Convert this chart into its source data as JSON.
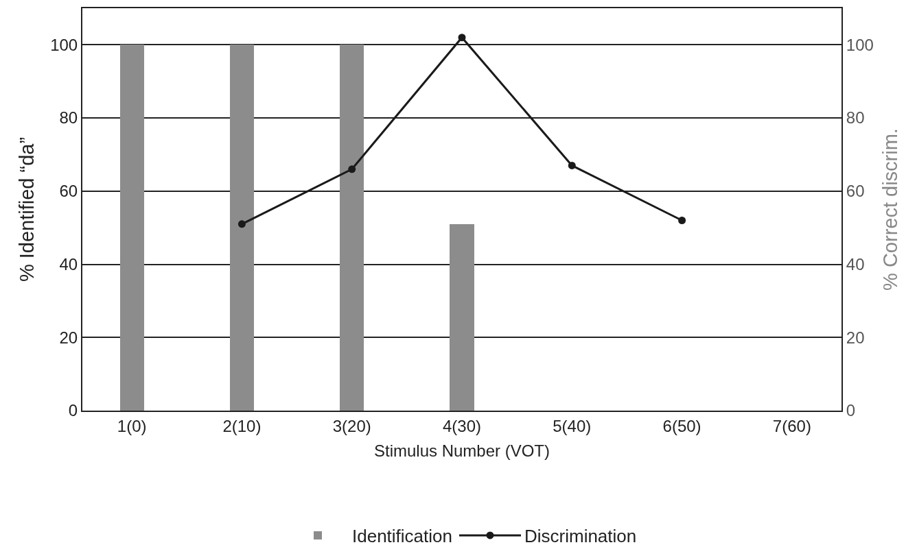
{
  "chart_data": {
    "type": "bar",
    "xlabel": "Stimulus Number (VOT)",
    "ylabel": "% Identified “da”",
    "y2label": "% Correct discrim.",
    "categories": [
      "1(0)",
      "2(10)",
      "3(20)",
      "4(30)",
      "5(40)",
      "6(50)",
      "7(60)"
    ],
    "series": [
      {
        "name": "Identification",
        "color": "#8c8c8c",
        "values": [
          100,
          100,
          100,
          51,
          null,
          null,
          null
        ]
      },
      {
        "name": "Discrimination",
        "type": "line",
        "axis": "y2",
        "color": "#1a1a1a",
        "marker": "circle",
        "values": [
          null,
          51,
          66,
          102,
          67,
          52,
          null
        ]
      }
    ],
    "ylim": [
      0,
      110
    ],
    "yticks": [
      0,
      20,
      40,
      60,
      80,
      100
    ],
    "y2lim": [
      0,
      110
    ],
    "y2ticks": [
      0,
      20,
      40,
      60,
      80,
      100
    ],
    "grid": "y",
    "legend": "bottom"
  }
}
